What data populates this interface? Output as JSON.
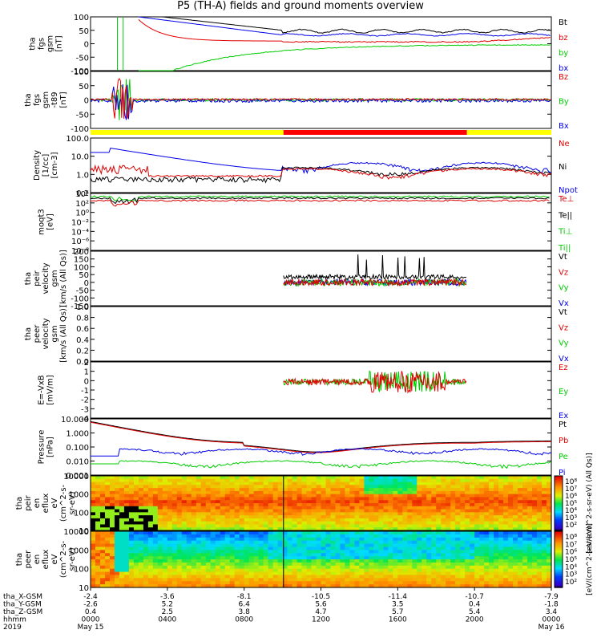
{
  "title": "P5 (TH-A) fields and ground moments overview",
  "colors": {
    "black": "#000000",
    "red": "#e00000",
    "green": "#00cc00",
    "blue": "#0000e6",
    "yellow": "#ffff00",
    "barred": "#ff0000"
  },
  "chart_data": [
    {
      "type": "line",
      "ylabel": [
        "tha",
        "fgs",
        "gsm",
        "[nT]"
      ],
      "ylim": [
        -100,
        100
      ],
      "yticks": [
        100,
        50,
        0,
        -50,
        -100
      ],
      "series": [
        {
          "name": "Bt",
          "color": "black"
        },
        {
          "name": "bz",
          "color": "red"
        },
        {
          "name": "by",
          "color": "green"
        },
        {
          "name": "bx",
          "color": "blue"
        }
      ]
    },
    {
      "type": "line",
      "ylabel": [
        "tha",
        "fgs",
        "gsm",
        "-t89",
        "[nT]"
      ],
      "ylim": [
        -120,
        120
      ],
      "yticks": [
        100,
        50,
        0,
        -50,
        -100
      ],
      "series": [
        {
          "name": "Bz",
          "color": "red"
        },
        {
          "name": "By",
          "color": "green"
        },
        {
          "name": "Bx",
          "color": "blue"
        }
      ]
    },
    {
      "type": "line",
      "ylabel": [
        "Density",
        "[1/cc]",
        "[cm-3]"
      ],
      "log": true,
      "ylim": [
        0.05,
        300
      ],
      "yticks": [
        "100.0",
        "10.0",
        "1.0",
        "0.1"
      ],
      "series": [
        {
          "name": "Ne",
          "color": "red"
        },
        {
          "name": "Ni",
          "color": "black"
        },
        {
          "name": "Npot",
          "color": "blue"
        }
      ]
    },
    {
      "type": "line",
      "ylabel": [
        "moqt3",
        "[eV]"
      ],
      "log": true,
      "yticks": [
        "10⁴",
        "10²",
        "10⁰",
        "10⁻²",
        "10⁻⁴",
        "10⁻⁶",
        "10⁻⁸"
      ],
      "series": [
        {
          "name": "Te⊥",
          "color": "red"
        },
        {
          "name": "Te||",
          "color": "black"
        },
        {
          "name": "Ti⊥",
          "color": "green"
        },
        {
          "name": "Ti||",
          "color": "green"
        }
      ]
    },
    {
      "type": "line",
      "ylabel": [
        "tha",
        "peir",
        "velocity",
        "gsm",
        "[km/s (All Qs)]"
      ],
      "ylim": [
        -150,
        200
      ],
      "yticks": [
        200,
        150,
        100,
        50,
        0,
        -50,
        -100,
        -150
      ],
      "series": [
        {
          "name": "Vt",
          "color": "black"
        },
        {
          "name": "Vz",
          "color": "red"
        },
        {
          "name": "Vy",
          "color": "green"
        },
        {
          "name": "Vx",
          "color": "blue"
        }
      ]
    },
    {
      "type": "line",
      "ylabel": [
        "tha",
        "peer",
        "velocity",
        "gsm",
        "[km/s (All Qs)]"
      ],
      "ylim": [
        0,
        1
      ],
      "yticks": [
        "1.0",
        "0.8",
        "0.6",
        "0.4",
        "0.2",
        "0.0"
      ],
      "series": [
        {
          "name": "Vt",
          "color": "black"
        },
        {
          "name": "Vz",
          "color": "red"
        },
        {
          "name": "Vy",
          "color": "green"
        },
        {
          "name": "Vx",
          "color": "blue"
        }
      ]
    },
    {
      "type": "line",
      "ylabel": [
        "E=-VxB",
        "[mV/m]"
      ],
      "ylim": [
        -4,
        2.2
      ],
      "yticks": [
        2,
        1,
        0,
        -1,
        -2,
        -3,
        -4
      ],
      "series": [
        {
          "name": "Ez",
          "color": "red"
        },
        {
          "name": "Ey",
          "color": "green"
        },
        {
          "name": "Ex",
          "color": "blue"
        }
      ]
    },
    {
      "type": "line",
      "ylabel": [
        "Pressure",
        "[nPa]"
      ],
      "log": true,
      "ylim": [
        0.001,
        100
      ],
      "yticks": [
        "10.000",
        "1.000",
        "0.100",
        "0.010",
        "0.001"
      ],
      "series": [
        {
          "name": "Pt",
          "color": "black"
        },
        {
          "name": "Pb",
          "color": "red"
        },
        {
          "name": "Pe",
          "color": "green"
        },
        {
          "name": "Pi",
          "color": "blue"
        }
      ]
    },
    {
      "type": "heatmap",
      "ylabel": [
        "tha",
        "peir",
        "en",
        "eflux",
        "eV",
        "(cm^2-s-",
        "sr-eV)"
      ],
      "yticks": [
        "10000",
        "1000",
        "100",
        "10"
      ],
      "colorbar_ticks": [
        "10⁸",
        "10⁷",
        "10⁶",
        "10⁵",
        "10⁴",
        "10³",
        "10²"
      ],
      "colorbar_label": "[eV/(cm^2-s-sr-eV) (All Qs)]"
    },
    {
      "type": "heatmap",
      "ylabel": [
        "tha",
        "peer",
        "en",
        "eflux",
        "eV",
        "(cm^2-s-",
        "sr-eV)"
      ],
      "yticks": [
        "10000",
        "1000",
        "100",
        "10"
      ],
      "colorbar_ticks": [
        "10⁸",
        "10⁷",
        "10⁶",
        "10⁵",
        "10⁴",
        "10³",
        "10²"
      ],
      "colorbar_label": "[eV/(cm^2-s-sr-eV)]"
    }
  ],
  "xaxis": {
    "rows": [
      {
        "label": "tha_X-GSM",
        "values": [
          "-2.4",
          "-3.6",
          "-8.1",
          "-10.5",
          "-11.4",
          "-10.7",
          "-7.9"
        ]
      },
      {
        "label": "tha_Y-GSM",
        "values": [
          "-2.6",
          "5.2",
          "6.4",
          "5.6",
          "3.5",
          "0.4",
          "-1.8"
        ]
      },
      {
        "label": "tha_Z-GSM",
        "values": [
          "0.4",
          "2.5",
          "3.8",
          "4.7",
          "5.7",
          "5.4",
          "3.4"
        ]
      },
      {
        "label": "hhmm",
        "values": [
          "0000",
          "0400",
          "0800",
          "1200",
          "1600",
          "2000",
          "0000"
        ]
      },
      {
        "label": "2019",
        "values": [
          "May 15",
          "",
          "",
          "",
          "",
          "",
          "May 16"
        ]
      }
    ]
  }
}
